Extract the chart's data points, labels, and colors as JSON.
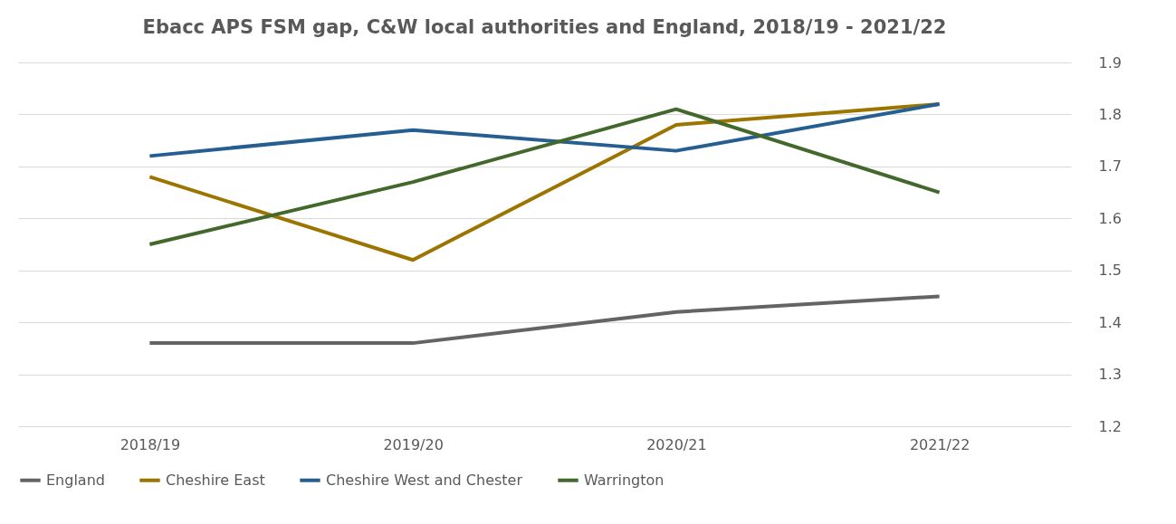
{
  "chart_data": {
    "type": "line",
    "title": "Ebacc APS FSM gap, C&W local authorities and England, 2018/19 - 2021/22",
    "categories": [
      "2018/19",
      "2019/20",
      "2020/21",
      "2021/22"
    ],
    "series": [
      {
        "name": "England",
        "color": "#646464",
        "values": [
          1.36,
          1.36,
          1.42,
          1.45
        ]
      },
      {
        "name": "Cheshire East",
        "color": "#9c7400",
        "values": [
          1.68,
          1.52,
          1.78,
          1.82
        ]
      },
      {
        "name": "Cheshire West and Chester",
        "color": "#255e91",
        "values": [
          1.72,
          1.77,
          1.73,
          1.82
        ]
      },
      {
        "name": "Warrington",
        "color": "#43682b",
        "values": [
          1.55,
          1.67,
          1.81,
          1.65
        ]
      }
    ],
    "ylim": [
      1.2,
      1.9
    ],
    "yticks": [
      1.2,
      1.3,
      1.4,
      1.5,
      1.6,
      1.7,
      1.8,
      1.9
    ],
    "grid": "y",
    "legend": "bottom",
    "marker": "none",
    "line_style": "solid"
  }
}
